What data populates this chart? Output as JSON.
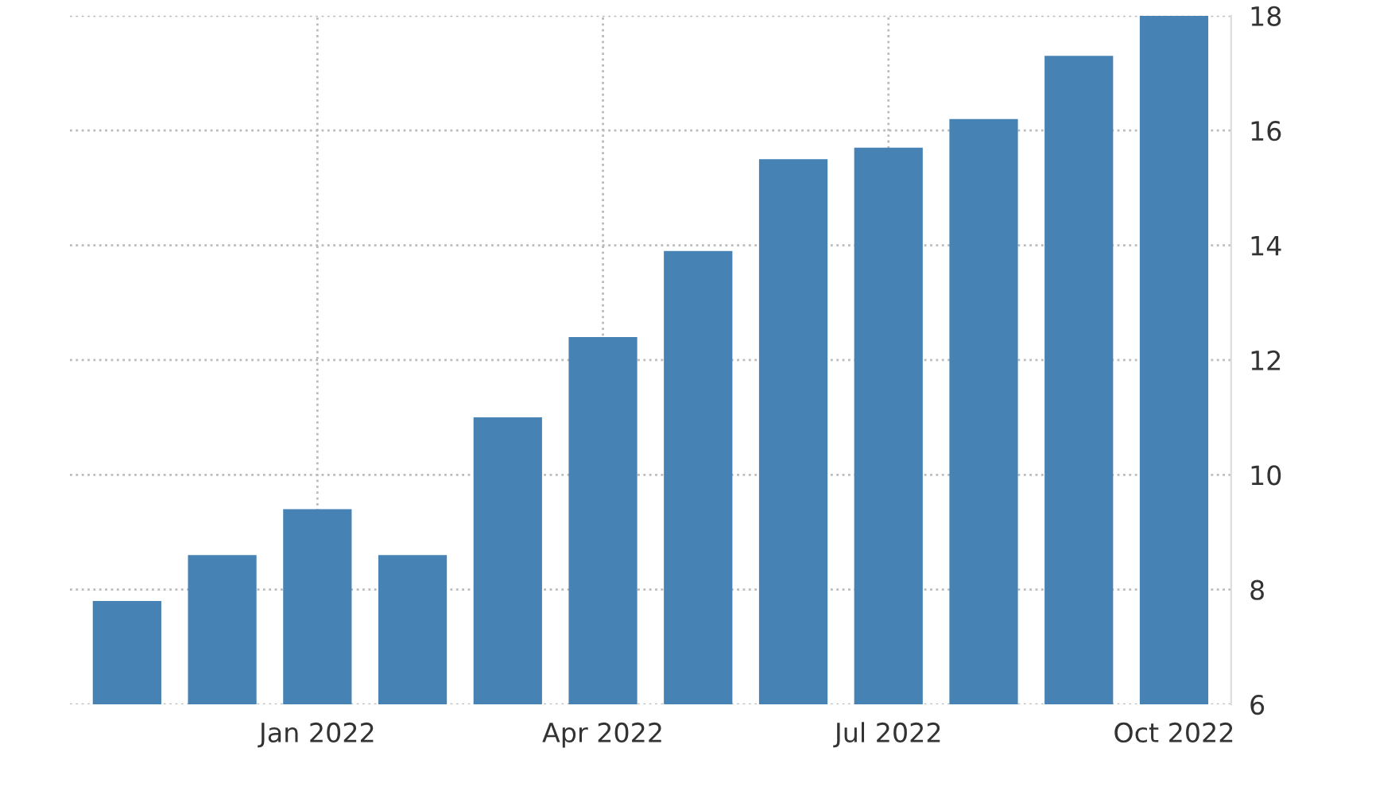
{
  "chart_data": {
    "type": "bar",
    "categories": [
      null,
      null,
      "Jan 2022",
      null,
      null,
      "Apr 2022",
      null,
      null,
      "Jul 2022",
      null,
      null,
      "Oct 2022"
    ],
    "values": [
      7.8,
      8.6,
      9.4,
      8.6,
      11.0,
      12.4,
      13.9,
      15.5,
      15.7,
      16.2,
      17.3,
      18.0
    ],
    "color": "#4682b4",
    "ylim": [
      6,
      18
    ],
    "yticks": [
      6,
      8,
      10,
      12,
      14,
      16,
      18
    ],
    "grid": true
  }
}
